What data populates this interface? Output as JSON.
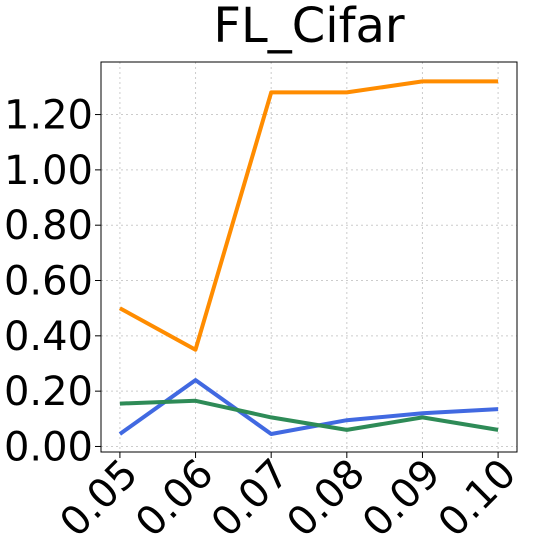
{
  "chart_data": {
    "type": "line",
    "title": "FL_Cifar",
    "xlabel": "",
    "ylabel": "",
    "x": [
      0.05,
      0.06,
      0.07,
      0.08,
      0.09,
      0.1
    ],
    "x_tick_labels": [
      "0.05",
      "0.06",
      "0.07",
      "0.08",
      "0.09",
      "0.10"
    ],
    "y_ticks": [
      0.0,
      0.2,
      0.4,
      0.6,
      0.8,
      1.0,
      1.2
    ],
    "y_tick_labels": [
      "0.00",
      "0.20",
      "0.40",
      "0.60",
      "0.80",
      "1.00",
      "1.20"
    ],
    "xlim": [
      0.0475,
      0.1025
    ],
    "ylim": [
      -0.02,
      1.39
    ],
    "grid": true,
    "legend": "none",
    "series": [
      {
        "color": "#FF8C00",
        "values": [
          0.5,
          0.35,
          1.28,
          1.28,
          1.32,
          1.32
        ]
      },
      {
        "color": "#4169E1",
        "values": [
          0.045,
          0.24,
          0.045,
          0.095,
          0.12,
          0.135
        ]
      },
      {
        "color": "#2E8B57",
        "values": [
          0.155,
          0.165,
          0.105,
          0.06,
          0.105,
          0.06
        ]
      }
    ]
  }
}
